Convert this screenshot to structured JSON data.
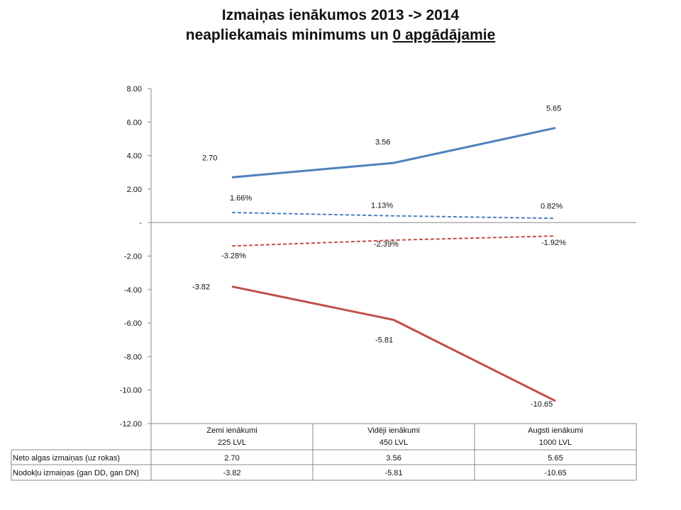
{
  "chart_data": {
    "type": "line",
    "title": [
      "Izmaiņas ienākumos 2013 -> 2014",
      "neapliekamais minimums un ",
      "0 apgādājamie"
    ],
    "ylim": [
      -12,
      8
    ],
    "yticks": [
      8,
      6,
      4,
      2,
      0,
      -2,
      -4,
      -6,
      -8,
      -10,
      -12
    ],
    "ytick_labels": [
      "8.00",
      "6.00",
      "4.00",
      "2.00",
      "-",
      "-2.00",
      "-4.00",
      "-6.00",
      "-8.00",
      "-10.00",
      "-12.00"
    ],
    "categories": [
      [
        "Zemi ienākumi",
        "225 LVL"
      ],
      [
        "Vidēji ienākumi",
        "450 LVL"
      ],
      [
        "Augsti ienākumi",
        "1000 LVL"
      ]
    ],
    "grid": false,
    "series": [
      {
        "name": "Neto algas izmaiņas (uz rokas)",
        "values": [
          2.7,
          3.56,
          5.65
        ],
        "labels": [
          "2.70",
          "3.56",
          "5.65"
        ],
        "color": "#4F81BD",
        "dash": false
      },
      {
        "name": "Nodokļu izmaiņas (gan DD, gan DN)",
        "values": [
          -3.82,
          -5.81,
          -10.65
        ],
        "labels": [
          "-3.82",
          "-5.81",
          "-10.65"
        ],
        "color": "#C0504D",
        "dash": false
      },
      {
        "values": [
          0.6,
          0.4,
          0.25
        ],
        "labels": [
          "1.66%",
          "1.13%",
          "0.82%"
        ],
        "color": "#4F81BD",
        "dash": true
      },
      {
        "values": [
          -1.4,
          -1.05,
          -0.8
        ],
        "labels": [
          "-3.28%",
          "-2.39%",
          "-1.92%"
        ],
        "color": "#C0504D",
        "dash": true
      }
    ],
    "table": {
      "rows": [
        {
          "label": "Neto algas izmaiņas (uz rokas)",
          "cells": [
            "2.70",
            "3.56",
            "5.65"
          ]
        },
        {
          "label": "Nodokļu izmaiņas (gan DD, gan DN)",
          "cells": [
            "-3.82",
            "-5.81",
            "-10.65"
          ]
        }
      ]
    }
  }
}
